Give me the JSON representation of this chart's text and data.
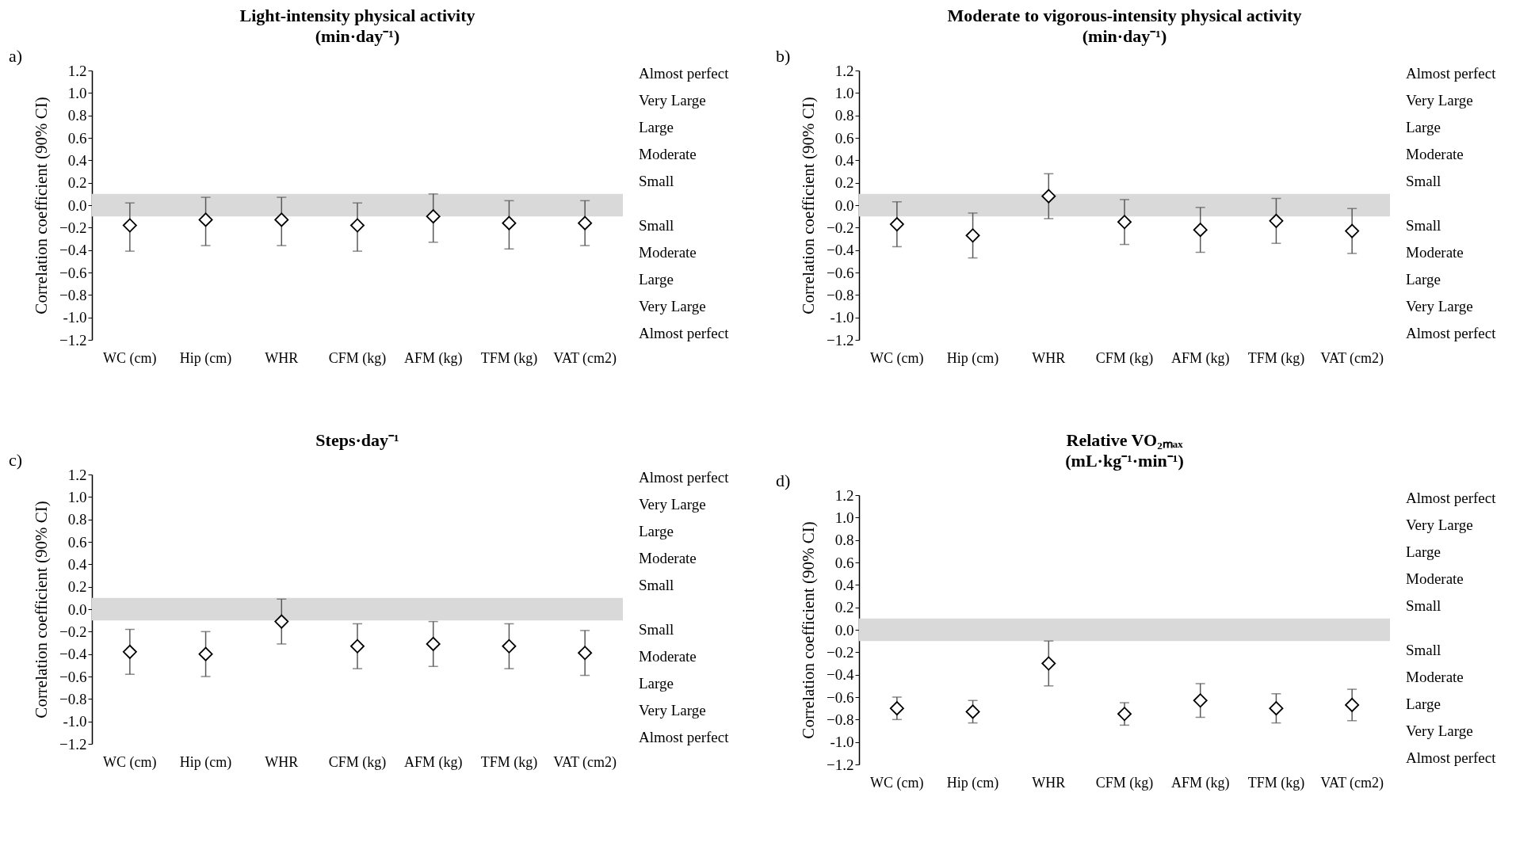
{
  "chart_data": [
    {
      "type": "scatter",
      "title": "Light-intensity physical activity\n(min·day⁻¹)",
      "ylabel": "Correlation coefficient (90% CI)",
      "marker": "diamond",
      "categories": [
        "WC (cm)",
        "Hip (cm)",
        "WHR",
        "CFM (kg)",
        "AFM (kg)",
        "TFM (kg)",
        "VAT (cm2)"
      ],
      "series": [
        {
          "color": "#000000",
          "values": [
            -0.18,
            -0.13,
            -0.13,
            -0.18,
            -0.1,
            -0.16,
            -0.16
          ],
          "errors": [
            [
              -0.41,
              0.02
            ],
            [
              -0.36,
              0.07
            ],
            [
              -0.36,
              0.07
            ],
            [
              -0.41,
              0.02
            ],
            [
              -0.33,
              0.1
            ],
            [
              -0.39,
              0.04
            ],
            [
              -0.36,
              0.04
            ]
          ]
        }
      ],
      "ylim": [
        -1.2,
        1.2
      ],
      "yticks": [
        -1.2,
        {
          "value": -1,
          "label": "-1.0"
        },
        -0.8,
        -0.6,
        -0.4,
        -0.2,
        {
          "value": 0,
          "label": "0.0"
        },
        0.2,
        0.4,
        0.6,
        0.8,
        {
          "value": 1,
          "label": "1.0"
        },
        1.2
      ],
      "bands": [
        {
          "axis": "y",
          "from": -0.1,
          "to": 0.1,
          "color": "#d9d9d9"
        }
      ],
      "annotations": [
        "a)",
        "Almost perfect",
        "Very Large",
        "Large",
        "Moderate",
        "Small",
        "Small",
        "Moderate",
        "Large",
        "Very Large",
        "Almost perfect"
      ]
    },
    {
      "type": "scatter",
      "title": "Moderate to vigorous-intensity physical activity\n(min·day⁻¹)",
      "ylabel": "Correlation coefficient (90% CI)",
      "marker": "diamond",
      "categories": [
        "WC (cm)",
        "Hip (cm)",
        "WHR",
        "CFM (kg)",
        "AFM (kg)",
        "TFM (kg)",
        "VAT (cm2)"
      ],
      "series": [
        {
          "color": "#000000",
          "values": [
            -0.17,
            -0.27,
            0.08,
            -0.15,
            -0.22,
            -0.14,
            -0.23
          ],
          "errors": [
            [
              -0.37,
              0.03
            ],
            [
              -0.47,
              -0.07
            ],
            [
              -0.12,
              0.28
            ],
            [
              -0.35,
              0.05
            ],
            [
              -0.42,
              -0.02
            ],
            [
              -0.34,
              0.06
            ],
            [
              -0.43,
              -0.03
            ]
          ]
        }
      ],
      "ylim": [
        -1.2,
        1.2
      ],
      "yticks": [
        -1.2,
        {
          "value": -1,
          "label": "-1.0"
        },
        -0.8,
        -0.6,
        -0.4,
        -0.2,
        {
          "value": 0,
          "label": "0.0"
        },
        0.2,
        0.4,
        0.6,
        0.8,
        {
          "value": 1,
          "label": "1.0"
        },
        1.2
      ],
      "bands": [
        {
          "axis": "y",
          "from": -0.1,
          "to": 0.1,
          "color": "#d9d9d9"
        }
      ],
      "annotations": [
        "b)",
        "Almost perfect",
        "Very Large",
        "Large",
        "Moderate",
        "Small",
        "Small",
        "Moderate",
        "Large",
        "Very Large",
        "Almost perfect"
      ]
    },
    {
      "type": "scatter",
      "title": "Steps·day⁻¹",
      "ylabel": "Correlation coefficient (90% CI)",
      "marker": "diamond",
      "categories": [
        "WC (cm)",
        "Hip (cm)",
        "WHR",
        "CFM (kg)",
        "AFM (kg)",
        "TFM (kg)",
        "VAT (cm2)"
      ],
      "series": [
        {
          "color": "#000000",
          "values": [
            -0.38,
            -0.4,
            -0.11,
            -0.33,
            -0.31,
            -0.33,
            -0.39
          ],
          "errors": [
            [
              -0.58,
              -0.18
            ],
            [
              -0.6,
              -0.2
            ],
            [
              -0.31,
              0.09
            ],
            [
              -0.53,
              -0.13
            ],
            [
              -0.51,
              -0.11
            ],
            [
              -0.53,
              -0.13
            ],
            [
              -0.59,
              -0.19
            ]
          ]
        }
      ],
      "ylim": [
        -1.2,
        1.2
      ],
      "yticks": [
        -1.2,
        {
          "value": -1,
          "label": "-1.0"
        },
        -0.8,
        -0.6,
        -0.4,
        -0.2,
        {
          "value": 0,
          "label": "0.0"
        },
        0.2,
        0.4,
        0.6,
        0.8,
        {
          "value": 1,
          "label": "1.0"
        },
        1.2
      ],
      "bands": [
        {
          "axis": "y",
          "from": -0.1,
          "to": 0.1,
          "color": "#d9d9d9"
        }
      ],
      "annotations": [
        "c)",
        "Almost perfect",
        "Very Large",
        "Large",
        "Moderate",
        "Small",
        "Small",
        "Moderate",
        "Large",
        "Very Large",
        "Almost perfect"
      ]
    },
    {
      "type": "scatter",
      "title": "Relative VO₂ₘₐₓ\n(mL·kg⁻¹·min⁻¹)",
      "ylabel": "Correlation coefficient (90% CI)",
      "marker": "diamond",
      "categories": [
        "WC (cm)",
        "Hip (cm)",
        "WHR",
        "CFM (kg)",
        "AFM (kg)",
        "TFM (kg)",
        "VAT (cm2)"
      ],
      "series": [
        {
          "color": "#000000",
          "values": [
            -0.7,
            -0.73,
            -0.3,
            -0.75,
            -0.63,
            -0.7,
            -0.67
          ],
          "errors": [
            [
              -0.8,
              -0.6
            ],
            [
              -0.83,
              -0.63
            ],
            [
              -0.5,
              -0.1
            ],
            [
              -0.85,
              -0.65
            ],
            [
              -0.78,
              -0.48
            ],
            [
              -0.83,
              -0.57
            ],
            [
              -0.81,
              -0.53
            ]
          ]
        }
      ],
      "ylim": [
        -1.2,
        1.2
      ],
      "yticks": [
        -1.2,
        {
          "value": -1,
          "label": "-1.0"
        },
        -0.8,
        -0.6,
        -0.4,
        -0.2,
        {
          "value": 0,
          "label": "0.0"
        },
        0.2,
        0.4,
        0.6,
        0.8,
        {
          "value": 1,
          "label": "1.0"
        },
        1.2
      ],
      "bands": [
        {
          "axis": "y",
          "from": -0.1,
          "to": 0.1,
          "color": "#d9d9d9"
        }
      ],
      "annotations": [
        "d)",
        "Almost perfect",
        "Very Large",
        "Large",
        "Moderate",
        "Small",
        "Small",
        "Moderate",
        "Large",
        "Very Large",
        "Almost perfect"
      ]
    }
  ]
}
